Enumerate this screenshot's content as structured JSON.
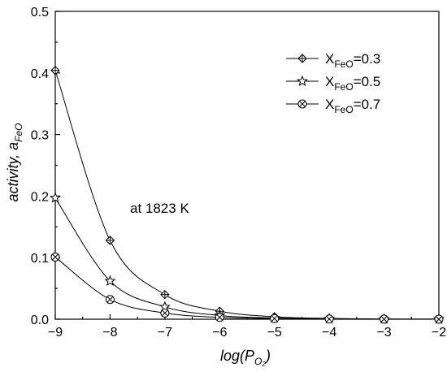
{
  "chart_data": {
    "type": "line",
    "xlabel": {
      "main": "log(P",
      "subscript": "O₂",
      "close": ")"
    },
    "ylabel": {
      "main": "activity, a",
      "subscript": "FeO"
    },
    "xlim": [
      -9,
      -2
    ],
    "ylim": [
      0,
      0.5
    ],
    "xticks": [
      -9,
      -8,
      -7,
      -6,
      -5,
      -4,
      -3,
      -2
    ],
    "yticks": [
      0.0,
      0.1,
      0.2,
      0.3,
      0.4,
      0.5
    ],
    "xtick_labels": [
      "−9",
      "−8",
      "−7",
      "−6",
      "−5",
      "−4",
      "−3",
      "−2"
    ],
    "ytick_labels": [
      "0.0",
      "0.1",
      "0.2",
      "0.3",
      "0.4",
      "0.5"
    ],
    "annotation": "at 1823 K",
    "legend_position": "top-right",
    "grid": false,
    "series": [
      {
        "name": "X",
        "name_sub": "FeO",
        "name_tail": "=0.3",
        "marker": "diamond-cross",
        "x": [
          -9,
          -8,
          -7,
          -6,
          -5,
          -4,
          -3,
          -2
        ],
        "y": [
          0.404,
          0.128,
          0.04,
          0.013,
          0.004,
          0.0013,
          0.0004,
          0.0001
        ]
      },
      {
        "name": "X",
        "name_sub": "FeO",
        "name_tail": "=0.5",
        "marker": "star",
        "x": [
          -9,
          -8,
          -7,
          -6,
          -5,
          -4,
          -3,
          -2
        ],
        "y": [
          0.197,
          0.062,
          0.02,
          0.006,
          0.002,
          0.0006,
          0.0002,
          0.0001
        ]
      },
      {
        "name": "X",
        "name_sub": "FeO",
        "name_tail": "=0.7",
        "marker": "circle-x",
        "x": [
          -9,
          -8,
          -7,
          -6,
          -5,
          -4,
          -3,
          -2
        ],
        "y": [
          0.101,
          0.032,
          0.01,
          0.003,
          0.001,
          0.0003,
          0.0001,
          0.0
        ]
      }
    ]
  }
}
